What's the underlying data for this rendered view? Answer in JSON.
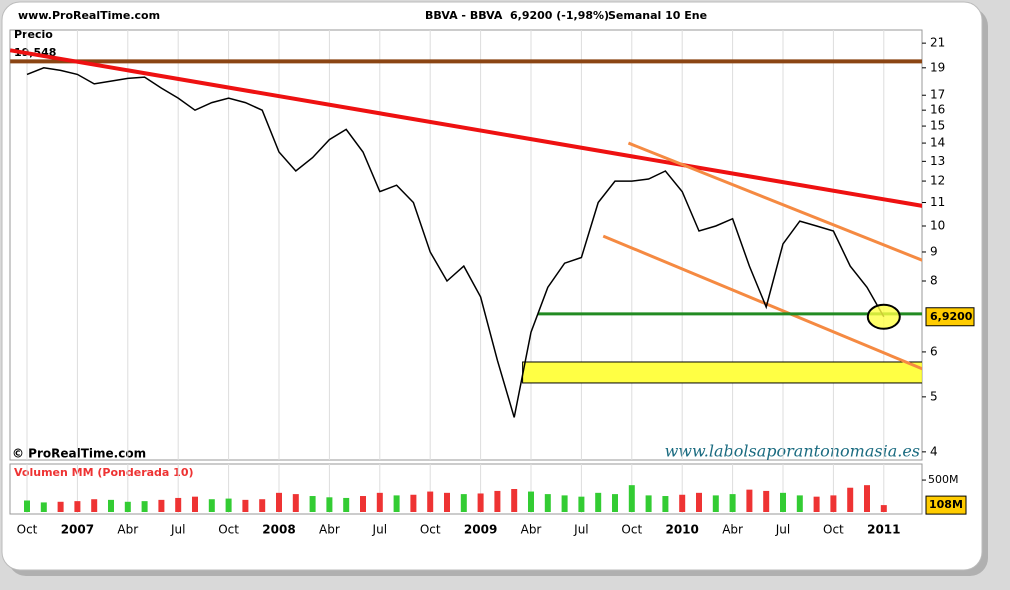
{
  "chart_data": {
    "type": "line",
    "site": "www.ProRealTime.com",
    "title": "BBVA - BBVA",
    "last_quote": "6,9200 (-1,98%)",
    "period": "Semanal  10 Ene",
    "price_label": "Precio",
    "price_start_label": "19,548",
    "copyright": "© ProRealTime.com",
    "watermark": "www.labolsaporantonomasia.es",
    "log_scale": true,
    "grid": true,
    "categories": [
      "Oct",
      null,
      null,
      "2007",
      null,
      null,
      "Abr",
      null,
      null,
      "Jul",
      null,
      null,
      "Oct",
      null,
      null,
      "2008",
      null,
      null,
      "Abr",
      null,
      null,
      "Jul",
      null,
      null,
      "Oct",
      null,
      null,
      "2009",
      null,
      null,
      "Abr",
      null,
      null,
      "Jul",
      null,
      null,
      "Oct",
      null,
      null,
      "2010",
      null,
      null,
      "Abr",
      null,
      null,
      "Jul",
      null,
      null,
      "Oct",
      null,
      null,
      "2011"
    ],
    "series": [
      {
        "color": "#000000",
        "values": [
          18.5,
          19.0,
          18.8,
          18.5,
          17.8,
          18.0,
          18.2,
          18.3,
          17.5,
          16.8,
          16.0,
          16.5,
          16.8,
          16.5,
          16.0,
          13.5,
          12.5,
          13.2,
          14.2,
          14.8,
          13.5,
          11.5,
          11.8,
          11.0,
          9.0,
          8.0,
          8.5,
          7.5,
          5.8,
          4.6,
          6.5,
          7.8,
          8.6,
          8.8,
          11.0,
          12.0,
          12.0,
          12.1,
          12.5,
          11.5,
          9.8,
          10.0,
          10.3,
          8.5,
          7.2,
          9.3,
          10.2,
          10.0,
          9.8,
          8.5,
          7.8,
          6.92
        ],
        "value_labels": [
          null,
          null,
          null,
          null,
          null,
          null,
          null,
          null,
          null,
          null,
          null,
          null,
          null,
          null,
          null,
          null,
          null,
          null,
          null,
          null,
          null,
          null,
          null,
          null,
          null,
          null,
          null,
          null,
          null,
          null,
          null,
          null,
          null,
          null,
          null,
          null,
          null,
          null,
          null,
          null,
          null,
          null,
          null,
          null,
          null,
          null,
          null,
          null,
          null,
          null,
          null,
          "6,9200"
        ]
      }
    ],
    "ylim": [
      3.87,
      22.15
    ],
    "yticks": [
      4,
      5,
      6,
      8,
      9,
      10,
      11,
      12,
      13,
      14,
      15,
      16,
      17,
      19,
      21
    ],
    "trend_lines": [
      {
        "color": "#8b4513",
        "from": [
          -1,
          19.5
        ],
        "to": [
          53.3,
          19.5
        ]
      },
      {
        "color": "#ee1111",
        "from": [
          -1,
          20.4
        ],
        "to": [
          53.3,
          10.85
        ]
      },
      {
        "color": "#f58a42",
        "from": [
          35.8,
          14
        ],
        "to": [
          53.3,
          8.7
        ]
      },
      {
        "color": "#f58a42",
        "from": [
          34.3,
          9.6
        ],
        "to": [
          53.3,
          5.6
        ]
      },
      {
        "color": "#228b22",
        "from": [
          30.4,
          7.0
        ],
        "to": [
          53.3,
          7.0
        ]
      }
    ],
    "zone": {
      "color": "#ffff44",
      "from": 29.5,
      "to": 53.3,
      "low": 5.29,
      "high": 5.76
    },
    "volume": {
      "title": "Volumen MM (Ponderada 10)",
      "up_color": "#33cc33",
      "down_color": "#ee3333",
      "values": [
        180,
        150,
        160,
        170,
        200,
        190,
        160,
        170,
        190,
        220,
        240,
        200,
        210,
        190,
        200,
        300,
        280,
        250,
        230,
        220,
        250,
        300,
        260,
        270,
        320,
        300,
        280,
        290,
        330,
        360,
        320,
        280,
        260,
        240,
        300,
        280,
        420,
        260,
        250,
        270,
        300,
        260,
        280,
        350,
        330,
        300,
        260,
        240,
        260,
        380,
        420,
        108
      ],
      "value_labels": [
        null,
        null,
        null,
        null,
        null,
        null,
        null,
        null,
        null,
        null,
        null,
        null,
        null,
        null,
        null,
        null,
        null,
        null,
        null,
        null,
        null,
        null,
        null,
        null,
        null,
        null,
        null,
        null,
        null,
        null,
        null,
        null,
        null,
        null,
        null,
        null,
        null,
        null,
        null,
        null,
        null,
        null,
        null,
        null,
        null,
        null,
        null,
        null,
        null,
        null,
        null,
        "108M"
      ],
      "ylim": [
        0,
        720
      ],
      "yticks": [
        {
          "value": 500,
          "label": "500M"
        }
      ]
    }
  }
}
